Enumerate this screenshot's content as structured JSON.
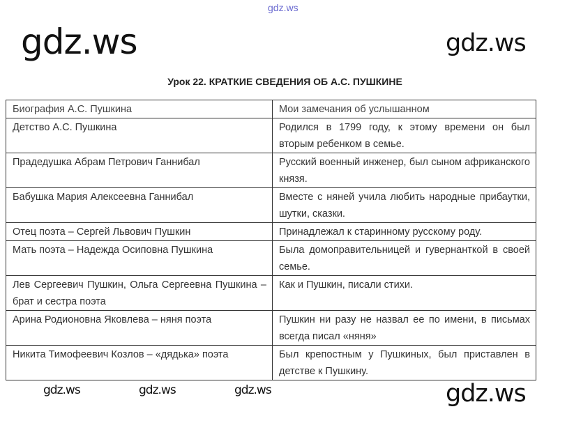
{
  "top_watermark": "gdz.ws",
  "title": "Урок 22. КРАТКИЕ СВЕДЕНИЯ ОБ А.С. ПУШКИНЕ",
  "table": {
    "headers": [
      "Биография А.С. Пушкина",
      "Мои замечания об услышанном"
    ],
    "rows": [
      [
        "Детство А.С. Пушкина",
        "Родился в 1799 году, к этому времени он был вторым ребенком в семье."
      ],
      [
        "Прадедушка Абрам Петрович Ганнибал",
        "Русский военный инженер, был сыном африканского князя."
      ],
      [
        "Бабушка Мария Алексеевна Ганнибал",
        "Вместе с няней учила любить народные прибаутки, шутки, сказки."
      ],
      [
        "Отец поэта – Сергей Львович Пушкин",
        "Принадлежал к старинному русскому роду."
      ],
      [
        "Мать поэта – Надежда Осиповна Пушкина",
        "Была домоправительницей и гувернанткой в своей семье."
      ],
      [
        "Лев Сергеевич Пушкин, Ольга Сергеевна Пушкина – брат и сестра поэта",
        "Как и Пушкин, писали стихи."
      ],
      [
        "Арина Родионовна Яковлева – няня поэта",
        "Пушкин ни разу не назвал ее по имени, в письмах всегда писал «няня»"
      ],
      [
        "Никита Тимофеевич Козлов – «дядька» поэта",
        "Был крепостным у Пушкиных, был приставлен в детстве к Пушкину."
      ]
    ]
  },
  "watermarks": [
    "gdz.ws",
    "gdz.ws",
    "gdz.ws",
    "gdz.ws",
    "gdz.ws",
    "gdz.ws"
  ]
}
